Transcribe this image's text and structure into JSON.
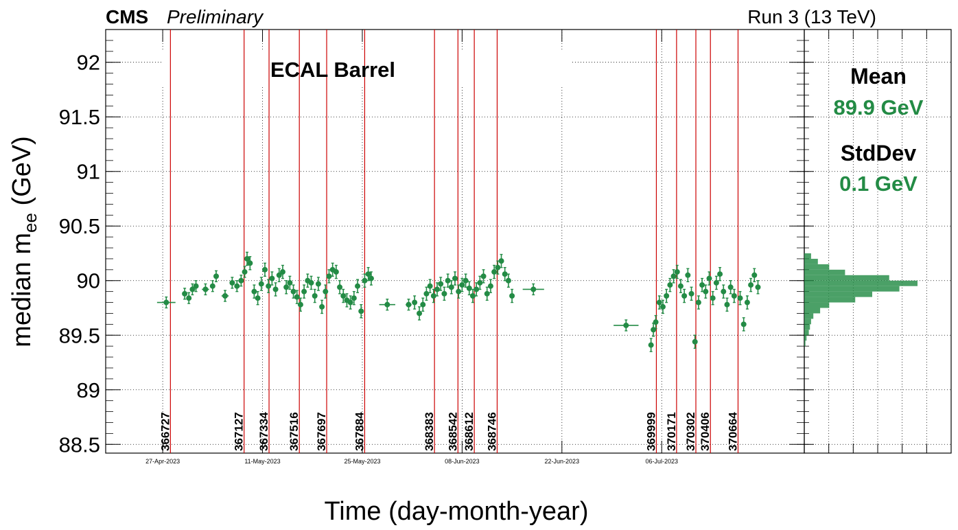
{
  "header": {
    "experiment": "CMS",
    "status": "Preliminary",
    "run_info": "Run 3 (13 TeV)"
  },
  "panel_label": "ECAL Barrel",
  "stats": {
    "mean_label": "Mean",
    "mean_value": "89.9 GeV",
    "stddev_label": "StdDev",
    "stddev_value": "0.1 GeV"
  },
  "colors": {
    "points": "#238b45",
    "run_lines": "#cc0000",
    "histogram": "#238b45",
    "text": "#000000"
  },
  "chart_data": {
    "type": "scatter",
    "title": "ECAL Barrel",
    "xlabel": "Time (day-month-year)",
    "ylabel": "median m_ee (GeV)",
    "ylabel_main": "median m",
    "ylabel_sub": "ee",
    "ylabel_unit": " (GeV)",
    "x_axis_type": "date",
    "xlim": [
      "2023-04-19",
      "2023-07-26"
    ],
    "ylim": [
      88.42,
      92.3
    ],
    "grid": true,
    "x_ticks": [
      {
        "date": "2023-04-27",
        "label": "27-Apr-2023"
      },
      {
        "date": "2023-05-11",
        "label": "11-May-2023"
      },
      {
        "date": "2023-05-25",
        "label": "25-May-2023"
      },
      {
        "date": "2023-06-08",
        "label": "08-Jun-2023"
      },
      {
        "date": "2023-06-22",
        "label": "22-Jun-2023"
      },
      {
        "date": "2023-07-06",
        "label": "06-Jul-2023"
      }
    ],
    "y_ticks": [
      {
        "value": 88.5,
        "label": "88.5"
      },
      {
        "value": 89,
        "label": "89"
      },
      {
        "value": 89.5,
        "label": "89.5"
      },
      {
        "value": 90,
        "label": "90"
      },
      {
        "value": 90.5,
        "label": "90.5"
      },
      {
        "value": 91,
        "label": "91"
      },
      {
        "value": 91.5,
        "label": "91.5"
      },
      {
        "value": 92,
        "label": "92"
      }
    ],
    "run_markers": [
      {
        "run": "366727",
        "date": "2023-04-28 02:00"
      },
      {
        "run": "367127",
        "date": "2023-05-08 10:00"
      },
      {
        "run": "367334",
        "date": "2023-05-11 22:00"
      },
      {
        "run": "367516",
        "date": "2023-05-16 04:00"
      },
      {
        "run": "367697",
        "date": "2023-05-20 00:00"
      },
      {
        "run": "367884",
        "date": "2023-05-25 08:00"
      },
      {
        "run": "368383",
        "date": "2023-06-04 03:00"
      },
      {
        "run": "368542",
        "date": "2023-06-07 10:00"
      },
      {
        "run": "368612",
        "date": "2023-06-09 17:00"
      },
      {
        "run": "368746",
        "date": "2023-06-12 22:00"
      },
      {
        "run": "369999",
        "date": "2023-07-05 06:00"
      },
      {
        "run": "370171",
        "date": "2023-07-08 02:00"
      },
      {
        "run": "370302",
        "date": "2023-07-10 19:00"
      },
      {
        "run": "370406",
        "date": "2023-07-12 20:00"
      },
      {
        "run": "370664",
        "date": "2023-07-16 17:00"
      }
    ],
    "series": [
      {
        "points": [
          {
            "x": "2023-04-27 12:00",
            "y": 89.8,
            "err": 0.05
          },
          {
            "x": "2023-04-30 02:00",
            "y": 89.88,
            "err": 0.05
          },
          {
            "x": "2023-04-30 16:00",
            "y": 89.84,
            "err": 0.05
          },
          {
            "x": "2023-05-01 04:00",
            "y": 89.92,
            "err": 0.05
          },
          {
            "x": "2023-05-01 16:00",
            "y": 89.95,
            "err": 0.05
          },
          {
            "x": "2023-05-03 00:00",
            "y": 89.92,
            "err": 0.05
          },
          {
            "x": "2023-05-04 00:00",
            "y": 89.95,
            "err": 0.05
          },
          {
            "x": "2023-05-04 12:00",
            "y": 90.04,
            "err": 0.05
          },
          {
            "x": "2023-05-05 18:00",
            "y": 89.86,
            "err": 0.05
          },
          {
            "x": "2023-05-06 18:00",
            "y": 89.98,
            "err": 0.05
          },
          {
            "x": "2023-05-07 10:00",
            "y": 89.95,
            "err": 0.05
          },
          {
            "x": "2023-05-08 00:00",
            "y": 90.0,
            "err": 0.05
          },
          {
            "x": "2023-05-08 12:00",
            "y": 90.08,
            "err": 0.05
          },
          {
            "x": "2023-05-08 20:00",
            "y": 90.2,
            "err": 0.06
          },
          {
            "x": "2023-05-09 06:00",
            "y": 90.16,
            "err": 0.06
          },
          {
            "x": "2023-05-09 20:00",
            "y": 89.9,
            "err": 0.06
          },
          {
            "x": "2023-05-10 08:00",
            "y": 89.84,
            "err": 0.06
          },
          {
            "x": "2023-05-10 20:00",
            "y": 89.97,
            "err": 0.06
          },
          {
            "x": "2023-05-11 08:00",
            "y": 90.1,
            "err": 0.06
          },
          {
            "x": "2023-05-11 20:00",
            "y": 89.95,
            "err": 0.06
          },
          {
            "x": "2023-05-12 08:00",
            "y": 90.02,
            "err": 0.06
          },
          {
            "x": "2023-05-12 20:00",
            "y": 89.92,
            "err": 0.06
          },
          {
            "x": "2023-05-13 08:00",
            "y": 90.05,
            "err": 0.06
          },
          {
            "x": "2023-05-13 20:00",
            "y": 90.08,
            "err": 0.06
          },
          {
            "x": "2023-05-14 08:00",
            "y": 89.94,
            "err": 0.06
          },
          {
            "x": "2023-05-14 20:00",
            "y": 89.98,
            "err": 0.06
          },
          {
            "x": "2023-05-15 08:00",
            "y": 89.9,
            "err": 0.06
          },
          {
            "x": "2023-05-15 20:00",
            "y": 89.85,
            "err": 0.06
          },
          {
            "x": "2023-05-16 08:00",
            "y": 89.78,
            "err": 0.06
          },
          {
            "x": "2023-05-16 20:00",
            "y": 89.9,
            "err": 0.06
          },
          {
            "x": "2023-05-17 08:00",
            "y": 90.0,
            "err": 0.06
          },
          {
            "x": "2023-05-17 20:00",
            "y": 89.98,
            "err": 0.06
          },
          {
            "x": "2023-05-18 08:00",
            "y": 89.86,
            "err": 0.06
          },
          {
            "x": "2023-05-18 20:00",
            "y": 89.97,
            "err": 0.06
          },
          {
            "x": "2023-05-19 08:00",
            "y": 89.76,
            "err": 0.06
          },
          {
            "x": "2023-05-19 20:00",
            "y": 89.9,
            "err": 0.06
          },
          {
            "x": "2023-05-20 08:00",
            "y": 90.04,
            "err": 0.06
          },
          {
            "x": "2023-05-20 20:00",
            "y": 90.1,
            "err": 0.06
          },
          {
            "x": "2023-05-21 08:00",
            "y": 90.08,
            "err": 0.06
          },
          {
            "x": "2023-05-21 20:00",
            "y": 89.94,
            "err": 0.06
          },
          {
            "x": "2023-05-22 08:00",
            "y": 89.86,
            "err": 0.06
          },
          {
            "x": "2023-05-22 20:00",
            "y": 89.82,
            "err": 0.06
          },
          {
            "x": "2023-05-23 08:00",
            "y": 89.8,
            "err": 0.06
          },
          {
            "x": "2023-05-23 20:00",
            "y": 89.84,
            "err": 0.06
          },
          {
            "x": "2023-05-24 08:00",
            "y": 89.95,
            "err": 0.06
          },
          {
            "x": "2023-05-24 20:00",
            "y": 89.72,
            "err": 0.06
          },
          {
            "x": "2023-05-25 08:00",
            "y": 90.0,
            "err": 0.06
          },
          {
            "x": "2023-05-25 20:00",
            "y": 90.06,
            "err": 0.06
          },
          {
            "x": "2023-05-26 06:00",
            "y": 90.02,
            "err": 0.06
          },
          {
            "x": "2023-05-28 12:00",
            "y": 89.78,
            "err": 0.05
          },
          {
            "x": "2023-05-31 12:00",
            "y": 89.78,
            "err": 0.05
          },
          {
            "x": "2023-06-01 08:00",
            "y": 89.8,
            "err": 0.06
          },
          {
            "x": "2023-06-02 00:00",
            "y": 89.7,
            "err": 0.06
          },
          {
            "x": "2023-06-02 12:00",
            "y": 89.78,
            "err": 0.06
          },
          {
            "x": "2023-06-03 00:00",
            "y": 89.88,
            "err": 0.06
          },
          {
            "x": "2023-06-03 12:00",
            "y": 89.95,
            "err": 0.06
          },
          {
            "x": "2023-06-04 00:00",
            "y": 89.86,
            "err": 0.06
          },
          {
            "x": "2023-06-04 12:00",
            "y": 89.92,
            "err": 0.06
          },
          {
            "x": "2023-06-05 00:00",
            "y": 89.97,
            "err": 0.06
          },
          {
            "x": "2023-06-05 12:00",
            "y": 89.88,
            "err": 0.06
          },
          {
            "x": "2023-06-06 00:00",
            "y": 90.0,
            "err": 0.06
          },
          {
            "x": "2023-06-06 12:00",
            "y": 89.94,
            "err": 0.06
          },
          {
            "x": "2023-06-07 00:00",
            "y": 90.02,
            "err": 0.06
          },
          {
            "x": "2023-06-07 12:00",
            "y": 89.9,
            "err": 0.06
          },
          {
            "x": "2023-06-08 00:00",
            "y": 89.96,
            "err": 0.06
          },
          {
            "x": "2023-06-08 12:00",
            "y": 90.0,
            "err": 0.06
          },
          {
            "x": "2023-06-09 00:00",
            "y": 89.93,
            "err": 0.06
          },
          {
            "x": "2023-06-09 12:00",
            "y": 89.86,
            "err": 0.06
          },
          {
            "x": "2023-06-10 00:00",
            "y": 89.92,
            "err": 0.06
          },
          {
            "x": "2023-06-10 12:00",
            "y": 89.98,
            "err": 0.06
          },
          {
            "x": "2023-06-11 00:00",
            "y": 90.04,
            "err": 0.06
          },
          {
            "x": "2023-06-11 12:00",
            "y": 89.88,
            "err": 0.06
          },
          {
            "x": "2023-06-12 00:00",
            "y": 89.95,
            "err": 0.06
          },
          {
            "x": "2023-06-12 12:00",
            "y": 90.08,
            "err": 0.06
          },
          {
            "x": "2023-06-13 00:00",
            "y": 90.12,
            "err": 0.06
          },
          {
            "x": "2023-06-13 12:00",
            "y": 90.18,
            "err": 0.06
          },
          {
            "x": "2023-06-14 00:00",
            "y": 90.06,
            "err": 0.06
          },
          {
            "x": "2023-06-14 12:00",
            "y": 90.0,
            "err": 0.06
          },
          {
            "x": "2023-06-15 00:00",
            "y": 89.86,
            "err": 0.06
          },
          {
            "x": "2023-06-18 00:00",
            "y": 89.92,
            "err": 0.05
          },
          {
            "x": "2023-07-01 00:00",
            "y": 89.59,
            "err": 0.05
          },
          {
            "x": "2023-07-04 12:00",
            "y": 89.41,
            "err": 0.06
          },
          {
            "x": "2023-07-04 20:00",
            "y": 89.55,
            "err": 0.06
          },
          {
            "x": "2023-07-05 04:00",
            "y": 89.62,
            "err": 0.06
          },
          {
            "x": "2023-07-05 16:00",
            "y": 89.8,
            "err": 0.06
          },
          {
            "x": "2023-07-06 04:00",
            "y": 89.76,
            "err": 0.06
          },
          {
            "x": "2023-07-06 16:00",
            "y": 89.86,
            "err": 0.06
          },
          {
            "x": "2023-07-07 04:00",
            "y": 89.96,
            "err": 0.06
          },
          {
            "x": "2023-07-07 16:00",
            "y": 90.04,
            "err": 0.06
          },
          {
            "x": "2023-07-08 04:00",
            "y": 90.08,
            "err": 0.06
          },
          {
            "x": "2023-07-08 16:00",
            "y": 89.95,
            "err": 0.06
          },
          {
            "x": "2023-07-09 04:00",
            "y": 89.86,
            "err": 0.06
          },
          {
            "x": "2023-07-09 16:00",
            "y": 90.05,
            "err": 0.06
          },
          {
            "x": "2023-07-10 04:00",
            "y": 89.88,
            "err": 0.06
          },
          {
            "x": "2023-07-10 16:00",
            "y": 89.44,
            "err": 0.06
          },
          {
            "x": "2023-07-11 04:00",
            "y": 89.8,
            "err": 0.06
          },
          {
            "x": "2023-07-11 16:00",
            "y": 89.96,
            "err": 0.06
          },
          {
            "x": "2023-07-12 04:00",
            "y": 89.9,
            "err": 0.06
          },
          {
            "x": "2023-07-12 16:00",
            "y": 90.02,
            "err": 0.06
          },
          {
            "x": "2023-07-13 04:00",
            "y": 89.84,
            "err": 0.06
          },
          {
            "x": "2023-07-13 16:00",
            "y": 89.98,
            "err": 0.06
          },
          {
            "x": "2023-07-14 04:00",
            "y": 90.06,
            "err": 0.06
          },
          {
            "x": "2023-07-14 16:00",
            "y": 89.9,
            "err": 0.06
          },
          {
            "x": "2023-07-15 04:00",
            "y": 89.78,
            "err": 0.06
          },
          {
            "x": "2023-07-15 16:00",
            "y": 89.94,
            "err": 0.06
          },
          {
            "x": "2023-07-16 04:00",
            "y": 89.86,
            "err": 0.06
          },
          {
            "x": "2023-07-17 00:00",
            "y": 89.84,
            "err": 0.06
          },
          {
            "x": "2023-07-17 12:00",
            "y": 89.6,
            "err": 0.06
          },
          {
            "x": "2023-07-18 00:00",
            "y": 89.8,
            "err": 0.06
          },
          {
            "x": "2023-07-18 12:00",
            "y": 89.96,
            "err": 0.06
          },
          {
            "x": "2023-07-19 00:00",
            "y": 90.05,
            "err": 0.06
          },
          {
            "x": "2023-07-19 12:00",
            "y": 89.94,
            "err": 0.06
          }
        ]
      }
    ],
    "side_histogram": {
      "orientation": "horizontal",
      "bins": [
        {
          "y_low": 89.4,
          "y_high": 89.45,
          "count": 1
        },
        {
          "y_low": 89.45,
          "y_high": 89.5,
          "count": 2
        },
        {
          "y_low": 89.5,
          "y_high": 89.55,
          "count": 4
        },
        {
          "y_low": 89.55,
          "y_high": 89.6,
          "count": 5
        },
        {
          "y_low": 89.6,
          "y_high": 89.65,
          "count": 6
        },
        {
          "y_low": 89.65,
          "y_high": 89.7,
          "count": 8
        },
        {
          "y_low": 89.7,
          "y_high": 89.75,
          "count": 14
        },
        {
          "y_low": 89.75,
          "y_high": 89.8,
          "count": 22
        },
        {
          "y_low": 89.8,
          "y_high": 89.85,
          "count": 45
        },
        {
          "y_low": 89.85,
          "y_high": 89.9,
          "count": 60
        },
        {
          "y_low": 89.9,
          "y_high": 89.95,
          "count": 84
        },
        {
          "y_low": 89.95,
          "y_high": 90.0,
          "count": 100
        },
        {
          "y_low": 90.0,
          "y_high": 90.05,
          "count": 75
        },
        {
          "y_low": 90.05,
          "y_high": 90.1,
          "count": 36
        },
        {
          "y_low": 90.1,
          "y_high": 90.15,
          "count": 22
        },
        {
          "y_low": 90.15,
          "y_high": 90.2,
          "count": 12
        },
        {
          "y_low": 90.2,
          "y_high": 90.25,
          "count": 6
        }
      ]
    }
  }
}
